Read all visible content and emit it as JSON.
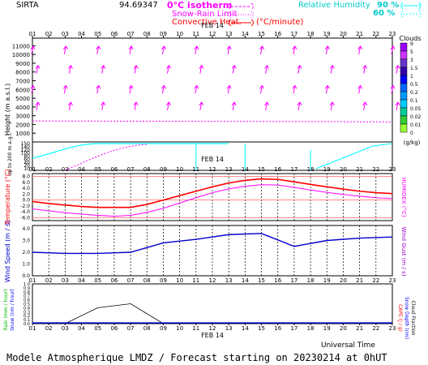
{
  "header": {
    "station": "SIRTA",
    "coords": "94.69347",
    "zero_isotherm": "0°C isotherm",
    "snow_rain_limit": "Snow-Rain Limit",
    "convective_heat": "Convective Heat.",
    "convective_unit": "(°C/minute)",
    "rh_label": "Relative Humidity",
    "rh_90": "90 %",
    "rh_60": "60 %"
  },
  "colors": {
    "magenta": "#ff00ff",
    "cyan": "#00ffff",
    "red": "#ff0000",
    "blue": "#0000cc",
    "green": "#00bb00",
    "purple": "#9900cc"
  },
  "date_label": "FEB 14",
  "hours": [
    "01",
    "02",
    "03",
    "04",
    "05",
    "06",
    "07",
    "08",
    "09",
    "10",
    "11",
    "12",
    "13",
    "14",
    "15",
    "16",
    "17",
    "18",
    "19",
    "20",
    "21",
    "22",
    "23"
  ],
  "footer": {
    "universal_time": "Universal Time",
    "title": "Modele Atmospherique LMDZ / Forecast starting on 20230214 at 0hUT"
  },
  "clouds_legend": {
    "title": "Clouds",
    "unit": "(g/kg)",
    "levels": [
      "9",
      "5",
      "3",
      "1.5",
      "1",
      "0.5",
      "0.2",
      "0.1",
      "0.05",
      "0.02",
      "0.01",
      "0"
    ],
    "colors": [
      "#9900ff",
      "#cc33ff",
      "#6633cc",
      "#3300aa",
      "#0000ff",
      "#0066ff",
      "#0099ff",
      "#00ccff",
      "#00cc99",
      "#33cc33",
      "#99ff33",
      "#ffff00"
    ]
  },
  "chart_data": [
    {
      "type": "line",
      "name": "height_panel",
      "ylabel": "Height (m a.s.l.)",
      "ylabel2": "Up to 200 m a.g.l.",
      "y_ticks_upper": [
        1000,
        2000,
        3000,
        4000,
        5000,
        6000,
        7000,
        8000,
        9000,
        10000,
        11000
      ],
      "y_ticks_lower": [
        10,
        20,
        40,
        60,
        80,
        100,
        120,
        140,
        150
      ],
      "series": [
        {
          "name": "0°C isotherm",
          "x": [
            0,
            23
          ],
          "values": [
            2400,
            2300
          ]
        }
      ]
    },
    {
      "type": "line",
      "name": "temperature_panel",
      "ylabel": "Temperature (°C)",
      "ylabel2": "HUMIDEX (°C)",
      "y_ticks": [
        "8.0",
        "6.0",
        "4.0",
        "2.0",
        "0.0",
        "-2.0",
        "-4.0",
        "-6.0"
      ],
      "ylim": [
        -7,
        9
      ],
      "series": [
        {
          "name": "Temperature",
          "x": [
            1,
            2,
            3,
            4,
            5,
            6,
            7,
            8,
            9,
            10,
            11,
            12,
            13,
            14,
            15,
            16,
            17,
            18,
            19,
            20,
            21,
            22,
            23
          ],
          "values": [
            -0.5,
            -1.2,
            -1.7,
            -2.2,
            -2.5,
            -2.5,
            -2.5,
            -1.5,
            0.0,
            1.5,
            3.0,
            4.5,
            5.8,
            6.7,
            7.2,
            7.0,
            6.2,
            5.3,
            4.5,
            3.7,
            3.0,
            2.5,
            2.2
          ]
        },
        {
          "name": "Humidex",
          "x": [
            1,
            2,
            3,
            4,
            5,
            6,
            7,
            8,
            9,
            10,
            11,
            12,
            13,
            14,
            15,
            16,
            17,
            18,
            19,
            20,
            21,
            22,
            23
          ],
          "values": [
            -3.0,
            -3.7,
            -4.3,
            -4.8,
            -5.2,
            -5.5,
            -5.2,
            -4.2,
            -2.8,
            -1.0,
            0.8,
            2.5,
            3.8,
            4.7,
            5.2,
            5.1,
            4.3,
            3.4,
            2.6,
            1.9,
            1.3,
            0.8,
            0.5
          ]
        }
      ]
    },
    {
      "type": "line",
      "name": "wind_panel",
      "ylabel": "Wind Speed (m / s)",
      "ylabel2": "Wind Gust (m / s)",
      "y_ticks": [
        "4.0",
        "3.0",
        "2.0",
        "1.0",
        "0.0"
      ],
      "ylim": [
        0,
        4
      ],
      "series": [
        {
          "name": "Wind Speed",
          "x": [
            1,
            3,
            5,
            7,
            9,
            11,
            13,
            15,
            17,
            19,
            21,
            23
          ],
          "values": [
            2.0,
            1.9,
            1.9,
            2.0,
            2.8,
            3.1,
            3.5,
            3.6,
            2.5,
            3.0,
            3.2,
            3.3
          ]
        }
      ]
    },
    {
      "type": "line",
      "name": "precip_panel",
      "ylabel": "Rain (mm / hour) Snow (cm / hour)",
      "ylabel2": "CAPE (J / g) Snow Depth (cm) Cloud Fraction",
      "y_ticks": [
        "1.0",
        "0.9",
        "0.8",
        "0.7",
        "0.6",
        "0.5",
        "0.4",
        "0.3",
        "0.2",
        "0.1",
        "0.0"
      ],
      "ylim": [
        0,
        1
      ],
      "series": [
        {
          "name": "Precipitation",
          "x": [
            1,
            3,
            5,
            7,
            9,
            23
          ],
          "values": [
            0,
            0,
            0.4,
            0.5,
            0,
            0
          ]
        }
      ]
    }
  ]
}
